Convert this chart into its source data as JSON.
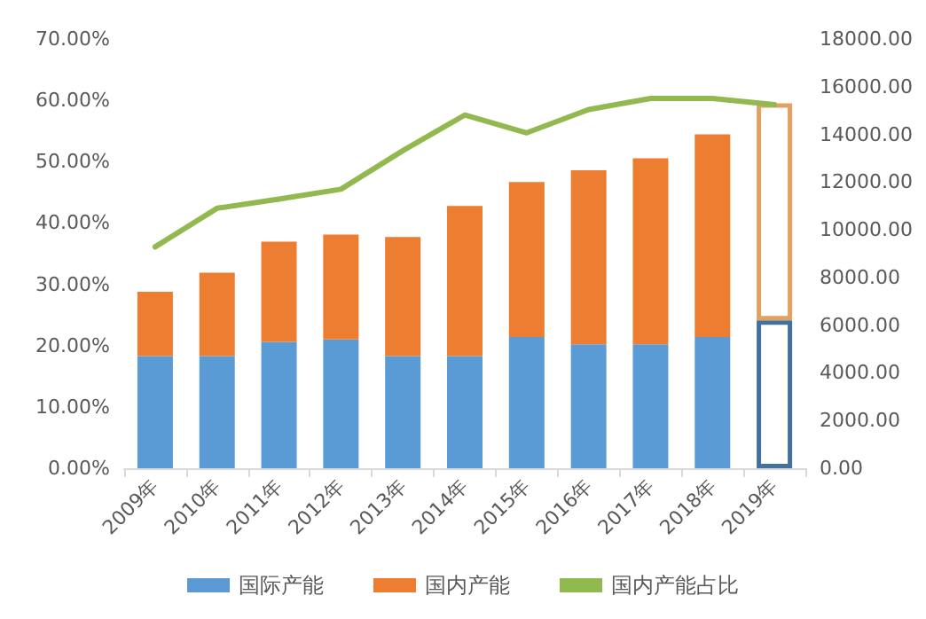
{
  "chart_data": {
    "type": "bar",
    "stacked": true,
    "categories": [
      "2009年",
      "2010年",
      "2011年",
      "2012年",
      "2013年",
      "2014年",
      "2015年",
      "2016年",
      "2017年",
      "2018年",
      "2019年"
    ],
    "series": [
      {
        "name": "国际产能",
        "axis": "y2",
        "color": "#5b9bd5",
        "colors": [
          "#5b9bd5",
          "#5b9bd5",
          "#5b9bd5",
          "#5b9bd5",
          "#5b9bd5",
          "#5b9bd5",
          "#5b9bd5",
          "#5b9bd5",
          "#5b9bd5",
          "#5b9bd5",
          "#41719c"
        ],
        "values": [
          4700,
          4700,
          5300,
          5400,
          4700,
          4700,
          5500,
          5200,
          5200,
          5500,
          6200
        ]
      },
      {
        "name": "国内产能",
        "axis": "y2",
        "color": "#ed7d31",
        "colors": [
          "#ed7d31",
          "#ed7d31",
          "#ed7d31",
          "#ed7d31",
          "#ed7d31",
          "#ed7d31",
          "#ed7d31",
          "#ed7d31",
          "#ed7d31",
          "#ed7d31",
          "#e3a060"
        ],
        "values": [
          2700,
          3500,
          4200,
          4400,
          5000,
          6300,
          6500,
          7300,
          7800,
          8500,
          9100
        ]
      },
      {
        "name": "国内产能占比",
        "type": "line",
        "axis": "y",
        "color": "#92b94f",
        "values": [
          36.1,
          42.4,
          43.9,
          45.5,
          51.8,
          57.6,
          54.7,
          58.5,
          60.3,
          60.3,
          59.3
        ]
      }
    ],
    "ylim": [
      0,
      70
    ],
    "yticks": [
      {
        "value": 0,
        "label": "0.00%"
      },
      {
        "value": 10,
        "label": "10.00%"
      },
      {
        "value": 20,
        "label": "20.00%"
      },
      {
        "value": 30,
        "label": "30.00%"
      },
      {
        "value": 40,
        "label": "40.00%"
      },
      {
        "value": 50,
        "label": "50.00%"
      },
      {
        "value": 60,
        "label": "60.00%"
      },
      {
        "value": 70,
        "label": "70.00%"
      }
    ],
    "y2lim": [
      0,
      18000
    ],
    "y2ticks": [
      {
        "value": 0,
        "label": "0.00"
      },
      {
        "value": 2000,
        "label": "2000.00"
      },
      {
        "value": 4000,
        "label": "4000.00"
      },
      {
        "value": 6000,
        "label": "6000.00"
      },
      {
        "value": 8000,
        "label": "8000.00"
      },
      {
        "value": 10000,
        "label": "10000.00"
      },
      {
        "value": 12000,
        "label": "12000.00"
      },
      {
        "value": 14000,
        "label": "14000.00"
      },
      {
        "value": 16000,
        "label": "16000.00"
      },
      {
        "value": 18000,
        "label": "18000.00"
      }
    ],
    "grid": false,
    "legend": "bottom",
    "marker": "none",
    "line_style": "solid"
  }
}
